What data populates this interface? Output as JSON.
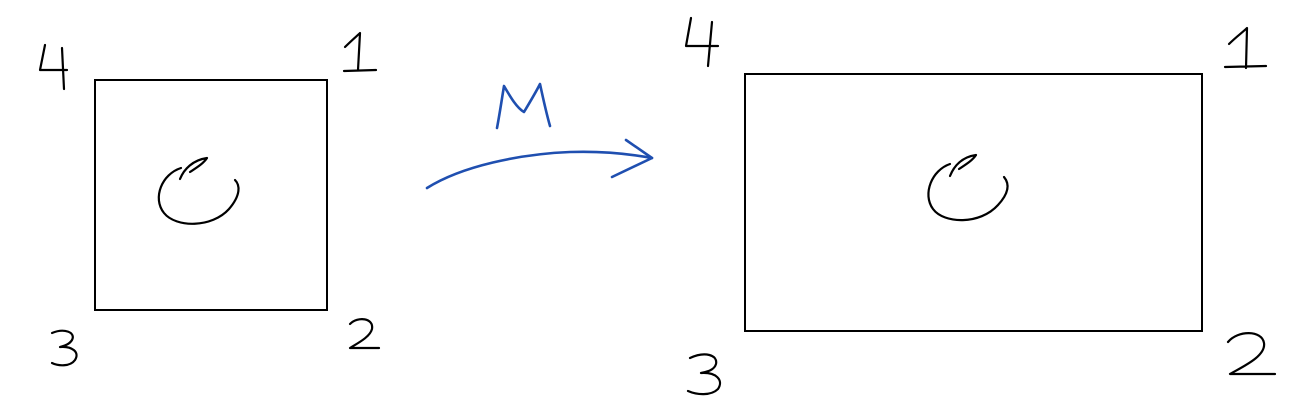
{
  "left_square": {
    "corners": {
      "top_right": "1",
      "bottom_right": "2",
      "bottom_left": "3",
      "top_left": "4"
    }
  },
  "arrow": {
    "label": "M"
  },
  "right_rectangle": {
    "corners": {
      "top_right": "1",
      "bottom_right": "2",
      "bottom_left": "3",
      "top_left": "4"
    }
  },
  "colors": {
    "ink": "#000000",
    "arrow": "#1f4fb0"
  }
}
